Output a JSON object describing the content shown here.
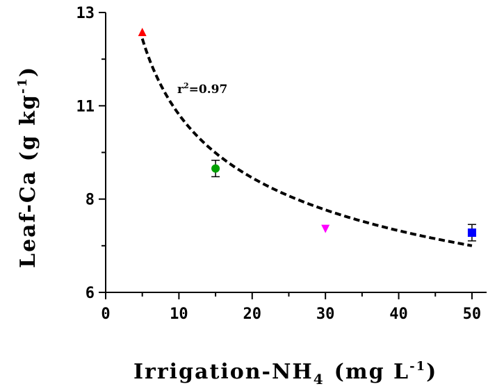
{
  "chart_data": {
    "type": "scatter",
    "xlabel": "Irrigation-NH",
    "xlabel_subscript": "4",
    "xlabel_units": "(mg  L",
    "xlabel_units_sup": "-1",
    "xlabel_units_close": ")",
    "ylabel": "Leaf-Ca  (g  kg",
    "ylabel_sup": "-1",
    "ylabel_close": ")",
    "annotation": "r",
    "annotation_sup": "2",
    "annotation_value": "=0.97",
    "xlim": [
      0,
      52
    ],
    "ylim": [
      5.5,
      13
    ],
    "xticks": [
      0,
      10,
      20,
      30,
      40,
      50
    ],
    "yticks": [
      13,
      11,
      8,
      6
    ],
    "ytick_positions": [
      13,
      10.5,
      8,
      5.5
    ],
    "points": [
      {
        "x": 5,
        "y": 12.48,
        "err": 0,
        "marker": "triangle-up",
        "color": "#ff0000"
      },
      {
        "x": 15,
        "y": 8.82,
        "err": 0.22,
        "marker": "circle",
        "color": "#00a000"
      },
      {
        "x": 30,
        "y": 7.2,
        "err": 0,
        "marker": "triangle-down",
        "color": "#ff00ff"
      },
      {
        "x": 50,
        "y": 7.1,
        "err": 0.22,
        "marker": "square",
        "color": "#0000ff"
      }
    ],
    "fit": {
      "type": "power",
      "x_start": 5,
      "x_end": 50,
      "y_start": 12.3,
      "y_end": 6.75
    },
    "grid": false,
    "legend": "none"
  }
}
